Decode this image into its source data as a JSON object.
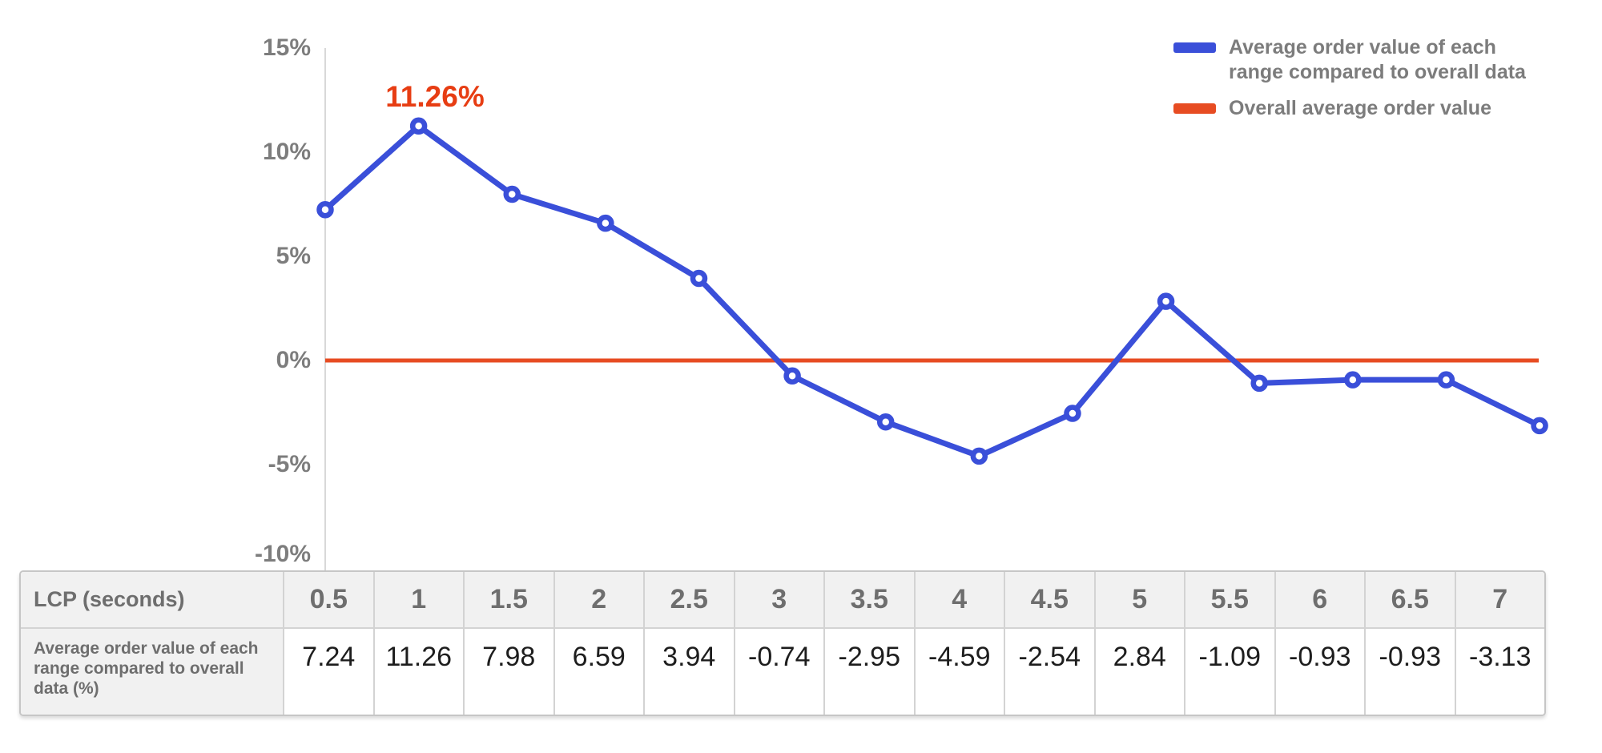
{
  "chart": {
    "annotation": "11.26%",
    "y_tick_labels": [
      "15%",
      "10%",
      "5%",
      "0%",
      "-5%",
      "-10%"
    ],
    "legend": [
      {
        "label": "Average order value of each range compared to overall data",
        "color": "#3a4fd9"
      },
      {
        "label": "Overall average order value",
        "color": "#e74c22"
      }
    ]
  },
  "chart_data": {
    "type": "line",
    "x": [
      0.5,
      1,
      1.5,
      2,
      2.5,
      3,
      3.5,
      4,
      4.5,
      5,
      5.5,
      6,
      6.5,
      7
    ],
    "xlabel": "LCP (seconds)",
    "ylabel": "",
    "ylim": [
      -10,
      15
    ],
    "yticks": [
      15,
      10,
      5,
      0,
      -5,
      -10
    ],
    "grid": false,
    "legend_position": "top-right",
    "series": [
      {
        "name": "Average order value of each range compared to overall data",
        "color": "#3a4fd9",
        "marker": "open-circle",
        "values": [
          7.24,
          11.26,
          7.98,
          6.59,
          3.94,
          -0.74,
          -2.95,
          -4.59,
          -2.54,
          2.84,
          -1.09,
          -0.93,
          -0.93,
          -3.13
        ]
      },
      {
        "name": "Overall average order value",
        "color": "#e74c22",
        "marker": "none",
        "values": [
          0,
          0,
          0,
          0,
          0,
          0,
          0,
          0,
          0,
          0,
          0,
          0,
          0,
          0
        ]
      }
    ],
    "annotation": {
      "text": "11.26%",
      "x": 1,
      "y": 11.26,
      "color": "#e73d13"
    }
  },
  "table": {
    "header_label": "LCP (seconds)",
    "columns": [
      "0.5",
      "1",
      "1.5",
      "2",
      "2.5",
      "3",
      "3.5",
      "4",
      "4.5",
      "5",
      "5.5",
      "6",
      "6.5",
      "7"
    ],
    "row_label": "Average order value of each range compared to overall data (%)",
    "values": [
      "7.24",
      "11.26",
      "7.98",
      "6.59",
      "3.94",
      "-0.74",
      "-2.95",
      "-4.59",
      "-2.54",
      "2.84",
      "-1.09",
      "-0.93",
      "-0.93",
      "-3.13"
    ]
  },
  "colors": {
    "series_line": "#3a4fd9",
    "overall_line": "#e74c22",
    "annotation": "#e73d13",
    "axis_line": "#d8d8d8",
    "tick_text": "#7d7d7d",
    "header_bg": "#f1f1f1"
  }
}
